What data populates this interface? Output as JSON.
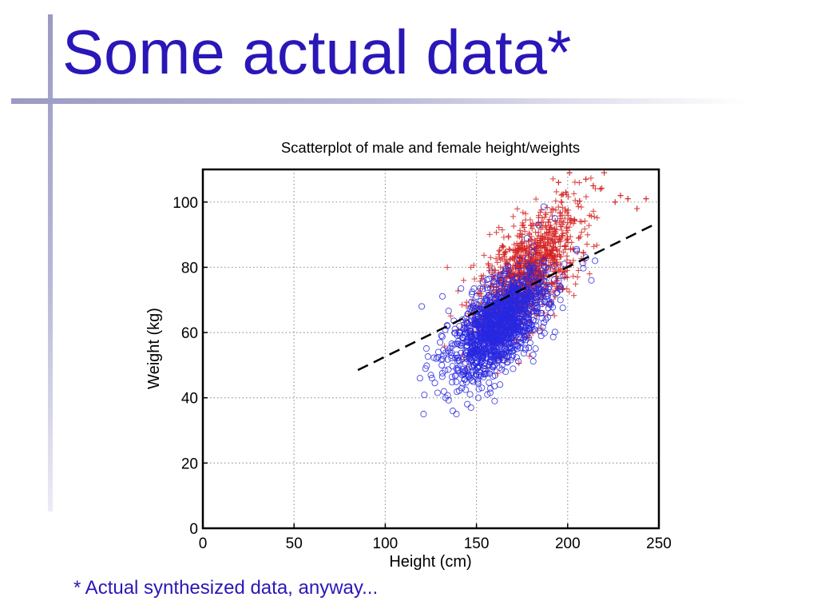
{
  "slide": {
    "title": "Some actual data*",
    "footnote": "* Actual synthesized data, anyway..."
  },
  "colors": {
    "title": "#2a17b8",
    "female_marker": "#2828e0",
    "male_marker": "#d42020",
    "trend_line": "#000000"
  },
  "chart_data": {
    "type": "scatter",
    "title": "Scatterplot of male and female height/weights",
    "xlabel": "Height (cm)",
    "ylabel": "Weight (kg)",
    "xlim": [
      0,
      250
    ],
    "ylim": [
      0,
      110
    ],
    "xticks": [
      0,
      50,
      100,
      150,
      200,
      250
    ],
    "yticks": [
      0,
      20,
      40,
      60,
      80,
      100
    ],
    "grid": true,
    "legend": "none",
    "series": [
      {
        "marker": "circle",
        "color": "#2828e0",
        "distribution": {
          "x_mean": 162,
          "x_sd": 13,
          "y_mean": 62,
          "y_sd": 8,
          "correlation": 0.6,
          "n": 1400
        },
        "points": [
          [
            119,
            46
          ],
          [
            121,
            35
          ],
          [
            125,
            47
          ],
          [
            128,
            52
          ],
          [
            133,
            40
          ],
          [
            137,
            36
          ],
          [
            139,
            35
          ],
          [
            142,
            43
          ],
          [
            147,
            37
          ],
          [
            151,
            40
          ],
          [
            156,
            41
          ],
          [
            160,
            39
          ],
          [
            166,
            48
          ],
          [
            170,
            53
          ],
          [
            188,
            64
          ],
          [
            196,
            70
          ],
          [
            205,
            85
          ],
          [
            210,
            83
          ],
          [
            215,
            82
          ],
          [
            213,
            76
          ],
          [
            120,
            68
          ],
          [
            131,
            50
          ],
          [
            134,
            62
          ],
          [
            184,
            93
          ],
          [
            193,
            95
          ]
        ]
      },
      {
        "marker": "plus",
        "color": "#d42020",
        "distribution": {
          "x_mean": 178,
          "x_sd": 14,
          "y_mean": 78,
          "y_sd": 10,
          "correlation": 0.65,
          "n": 1200
        },
        "points": [
          [
            195,
            106
          ],
          [
            199,
            103
          ],
          [
            201,
            109
          ],
          [
            210,
            107
          ],
          [
            214,
            105
          ],
          [
            218,
            104
          ],
          [
            220,
            109
          ],
          [
            226,
            100
          ],
          [
            229,
            102
          ],
          [
            233,
            101
          ],
          [
            238,
            98
          ],
          [
            243,
            101
          ],
          [
            134,
            80
          ],
          [
            143,
            76
          ],
          [
            147,
            80
          ],
          [
            209,
            82
          ],
          [
            212,
            78
          ],
          [
            187,
            66
          ],
          [
            148,
            62
          ]
        ]
      }
    ],
    "trend_line": {
      "style": "dashed",
      "color": "#000000",
      "points": [
        [
          85,
          48.5
        ],
        [
          247,
          93
        ]
      ]
    }
  }
}
